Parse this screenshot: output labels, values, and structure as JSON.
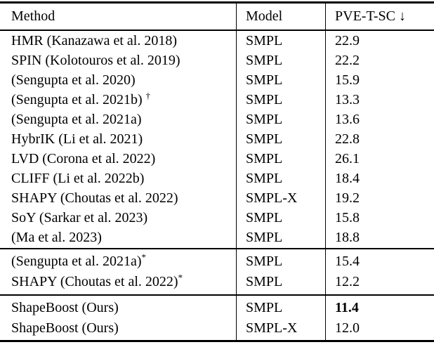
{
  "table": {
    "headers": [
      {
        "label": "Method"
      },
      {
        "label": "Model"
      },
      {
        "label": "PVE-T-SC ↓"
      }
    ],
    "metric_arrow": "↓",
    "sections": [
      {
        "rows": [
          {
            "method": "HMR (Kanazawa et al. 2018)",
            "model": "SMPL",
            "value": "22.9"
          },
          {
            "method": "SPIN (Kolotouros et al. 2019)",
            "model": "SMPL",
            "value": "22.2"
          },
          {
            "method": "(Sengupta et al. 2020)",
            "model": "SMPL",
            "value": "15.9"
          },
          {
            "method": "(Sengupta et al. 2021b) ",
            "sup": "†",
            "model": "SMPL",
            "value": "13.3"
          },
          {
            "method": "(Sengupta et al. 2021a)",
            "model": "SMPL",
            "value": "13.6"
          },
          {
            "method": "HybrIK (Li et al. 2021)",
            "model": "SMPL",
            "value": "22.8"
          },
          {
            "method": "LVD (Corona et al. 2022)",
            "model": "SMPL",
            "value": "26.1"
          },
          {
            "method": "CLIFF (Li et al. 2022b)",
            "model": "SMPL",
            "value": "18.4"
          },
          {
            "method": "SHAPY (Choutas et al. 2022)",
            "model": "SMPL-X",
            "value": "19.2"
          },
          {
            "method": "SoY (Sarkar et al. 2023)",
            "model": "SMPL",
            "value": "15.8"
          },
          {
            "method": "(Ma et al. 2023)",
            "model": "SMPL",
            "value": "18.8"
          }
        ]
      },
      {
        "rows": [
          {
            "method": "(Sengupta et al. 2021a)",
            "sup": "*",
            "model": "SMPL",
            "value": "15.4"
          },
          {
            "method": "SHAPY (Choutas et al. 2022)",
            "sup": "*",
            "model": "SMPL",
            "value": "12.2"
          }
        ]
      },
      {
        "rows": [
          {
            "method": "ShapeBoost (Ours)",
            "model": "SMPL",
            "value": "11.4",
            "value_bold": true
          },
          {
            "method": "ShapeBoost (Ours)",
            "model": "SMPL-X",
            "value": "12.0"
          }
        ]
      }
    ]
  },
  "colors": {
    "text": "#000000",
    "background": "#ffffff",
    "rule": "#000000"
  }
}
